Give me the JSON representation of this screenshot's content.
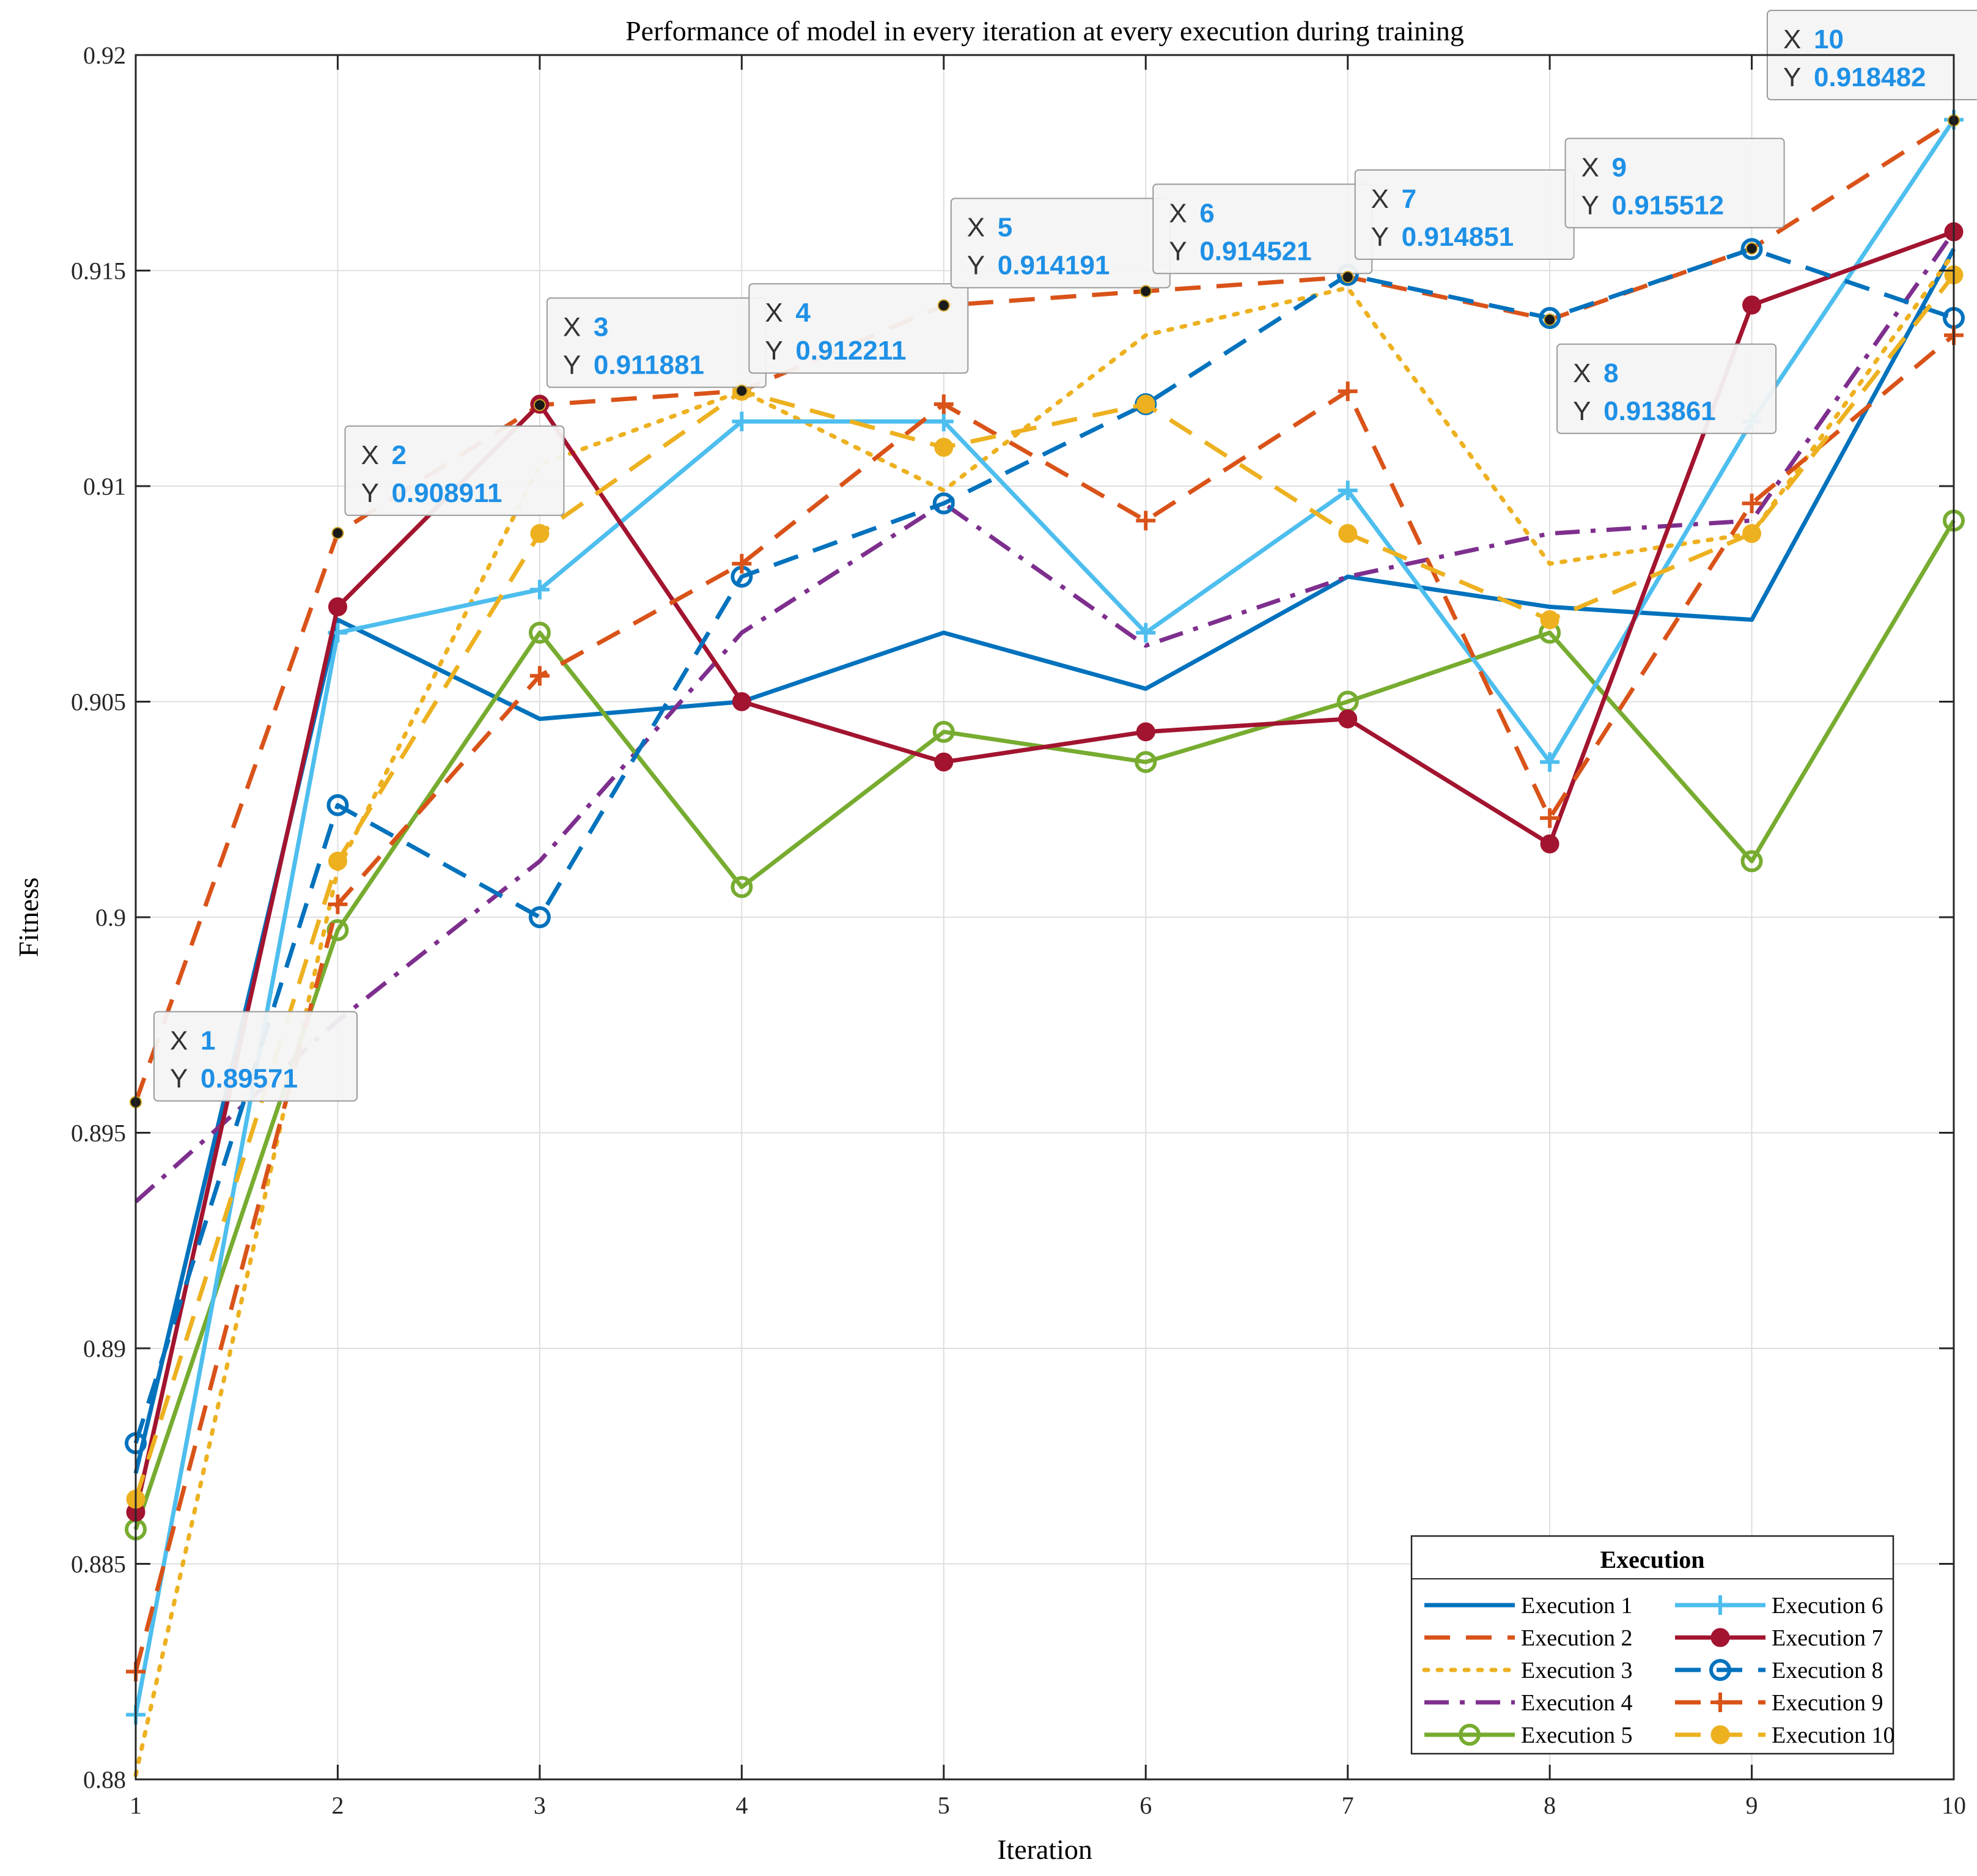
{
  "chart_data": {
    "type": "line",
    "title": "Performance of model in every iteration at every execution during training",
    "xlabel": "Iteration",
    "ylabel": "Fitness",
    "xlim": [
      1,
      10
    ],
    "ylim": [
      0.88,
      0.92
    ],
    "x_ticks": [
      "1",
      "2",
      "3",
      "4",
      "5",
      "6",
      "7",
      "8",
      "9",
      "10"
    ],
    "y_ticks": [
      "0.88",
      "0.885",
      "0.89",
      "0.895",
      "0.9",
      "0.905",
      "0.91",
      "0.915",
      "0.92"
    ],
    "grid": true,
    "legend": {
      "title": "Execution",
      "placement": "bottom-right",
      "columns": 2
    },
    "x": [
      1,
      2,
      3,
      4,
      5,
      6,
      7,
      8,
      9,
      10
    ],
    "series": [
      {
        "name": "Execution 1",
        "color": "#0072BD",
        "dash": "solid",
        "marker": "none",
        "values": [
          0.8871,
          0.9069,
          0.9046,
          0.905,
          0.9066,
          0.9053,
          0.9079,
          0.9072,
          0.9069,
          0.9155
        ]
      },
      {
        "name": "Execution 2",
        "color": "#D95319",
        "dash": "dash",
        "marker": "none",
        "values": [
          0.89571,
          0.908911,
          0.911881,
          0.912211,
          0.914191,
          0.914521,
          0.914851,
          0.913861,
          0.915512,
          0.918482
        ]
      },
      {
        "name": "Execution 3",
        "color": "#EDB120",
        "dash": "dot",
        "marker": "none",
        "values": [
          0.8801,
          0.9011,
          0.9105,
          0.9122,
          0.9099,
          0.9135,
          0.9146,
          0.9082,
          0.9089,
          0.9154
        ]
      },
      {
        "name": "Execution 4",
        "color": "#7E2F8E",
        "dash": "dashdot",
        "marker": "none",
        "values": [
          0.8934,
          0.8976,
          0.9013,
          0.9066,
          0.9096,
          0.9063,
          0.9079,
          0.9089,
          0.9092,
          0.9159
        ]
      },
      {
        "name": "Execution 5",
        "color": "#77AC30",
        "dash": "solid",
        "marker": "circle-open",
        "values": [
          0.8858,
          0.8997,
          0.9066,
          0.9007,
          0.9043,
          0.9036,
          0.905,
          0.9066,
          0.9013,
          0.9092
        ]
      },
      {
        "name": "Execution 6",
        "color": "#4DBEEE",
        "dash": "solid",
        "marker": "plus",
        "values": [
          0.8815,
          0.9066,
          0.9076,
          0.9115,
          0.9115,
          0.9066,
          0.9099,
          0.9036,
          0.9115,
          0.9185
        ]
      },
      {
        "name": "Execution 7",
        "color": "#A2142F",
        "dash": "solid",
        "marker": "circle-filled",
        "values": [
          0.8862,
          0.9072,
          0.9119,
          0.905,
          0.9036,
          0.9043,
          0.9046,
          0.9017,
          0.9142,
          0.9159
        ]
      },
      {
        "name": "Execution 8",
        "color": "#0072BD",
        "dash": "dash",
        "marker": "circle-open",
        "values": [
          0.8878,
          0.9026,
          0.9,
          0.9079,
          0.9096,
          0.9119,
          0.9149,
          0.9139,
          0.9155,
          0.9139
        ]
      },
      {
        "name": "Execution 9",
        "color": "#D95319",
        "dash": "dash",
        "marker": "plus",
        "values": [
          0.8825,
          0.9003,
          0.9056,
          0.9082,
          0.9119,
          0.9092,
          0.9122,
          0.9023,
          0.9096,
          0.9135
        ]
      },
      {
        "name": "Execution 10",
        "color": "#EDB120",
        "dash": "dash",
        "marker": "circle-filled",
        "values": [
          0.8865,
          0.9013,
          0.9089,
          0.9122,
          0.9109,
          0.9119,
          0.9089,
          0.9069,
          0.9089,
          0.9149
        ]
      }
    ],
    "annotations": [
      {
        "x_label": "1",
        "y_label": "0.89571",
        "x": 1,
        "y": 0.89571
      },
      {
        "x_label": "2",
        "y_label": "0.908911",
        "x": 2,
        "y": 0.908911
      },
      {
        "x_label": "3",
        "y_label": "0.911881",
        "x": 3,
        "y": 0.911881
      },
      {
        "x_label": "4",
        "y_label": "0.912211",
        "x": 4,
        "y": 0.912211
      },
      {
        "x_label": "5",
        "y_label": "0.914191",
        "x": 5,
        "y": 0.914191
      },
      {
        "x_label": "6",
        "y_label": "0.914521",
        "x": 6,
        "y": 0.914521
      },
      {
        "x_label": "7",
        "y_label": "0.914851",
        "x": 7,
        "y": 0.914851
      },
      {
        "x_label": "8",
        "y_label": "0.913861",
        "x": 8,
        "y": 0.913861
      },
      {
        "x_label": "9",
        "y_label": "0.915512",
        "x": 9,
        "y": 0.915512
      },
      {
        "x_label": "10",
        "y_label": "0.918482",
        "x": 10,
        "y": 0.918482
      }
    ],
    "datatip_prefix": {
      "x": "X",
      "y": "Y"
    },
    "datatip_value_color": "#1E90E6"
  }
}
